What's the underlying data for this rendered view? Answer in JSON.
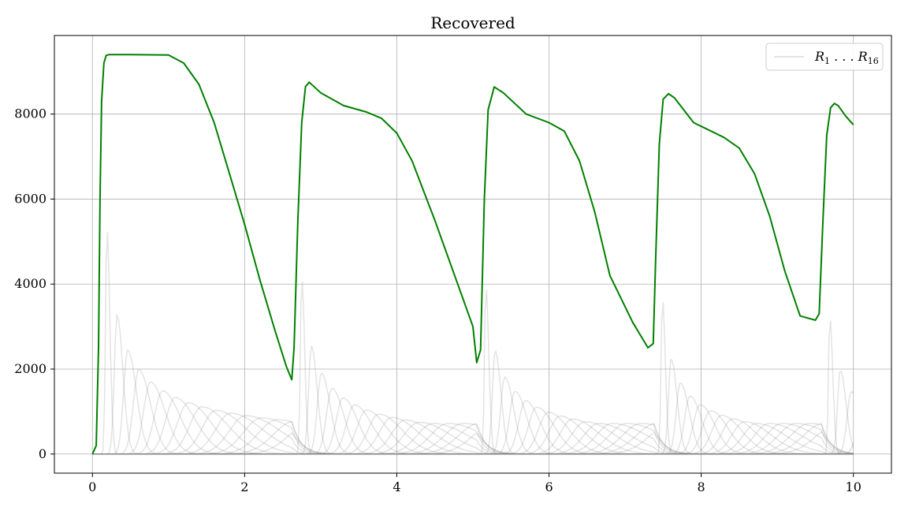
{
  "chart_data": {
    "type": "line",
    "title": "Recovered",
    "xlabel": "",
    "ylabel": "",
    "xlim": [
      -0.5,
      10.5
    ],
    "ylim": [
      -450,
      9850
    ],
    "x_ticks": [
      0,
      2,
      4,
      6,
      8,
      10
    ],
    "x_tick_labels": [
      "0",
      "2",
      "4",
      "6",
      "8",
      "10"
    ],
    "y_ticks": [
      0,
      2000,
      4000,
      6000,
      8000
    ],
    "y_tick_labels": [
      "0",
      "2000",
      "4000",
      "6000",
      "8000"
    ],
    "grid": true,
    "legend": {
      "placement": "top-right",
      "entries": [
        "R1 ... R16"
      ],
      "label_main": "R",
      "sub_first": "1",
      "ellipsis": " . . . ",
      "sub_last": "16"
    },
    "colors": {
      "total": "#008000",
      "components": "#808080",
      "grid": "#b0b0b0",
      "axes": "#000000"
    },
    "series": [
      {
        "role": "total",
        "x": [
          0,
          0.05,
          0.08,
          0.1,
          0.12,
          0.15,
          0.18,
          0.22,
          0.3,
          0.5,
          1.0,
          1.2,
          1.4,
          1.6,
          1.8,
          2.0,
          2.2,
          2.4,
          2.55,
          2.62,
          2.65,
          2.7,
          2.75,
          2.8,
          2.85,
          3.0,
          3.3,
          3.6,
          3.8,
          4.0,
          4.2,
          4.5,
          4.8,
          5.0,
          5.05,
          5.1,
          5.15,
          5.2,
          5.28,
          5.4,
          5.7,
          6.0,
          6.2,
          6.4,
          6.6,
          6.8,
          7.1,
          7.3,
          7.37,
          7.4,
          7.45,
          7.5,
          7.57,
          7.65,
          7.9,
          8.3,
          8.5,
          8.7,
          8.9,
          9.1,
          9.3,
          9.5,
          9.55,
          9.6,
          9.65,
          9.7,
          9.75,
          9.8,
          9.9,
          10.0
        ],
        "values": [
          0,
          200,
          2500,
          6000,
          8300,
          9200,
          9380,
          9400,
          9400,
          9400,
          9390,
          9200,
          8700,
          7800,
          6600,
          5400,
          4100,
          2900,
          2050,
          1750,
          2500,
          5500,
          7800,
          8650,
          8750,
          8500,
          8200,
          8050,
          7900,
          7550,
          6900,
          5500,
          4000,
          3000,
          2150,
          2450,
          6000,
          8100,
          8640,
          8500,
          8000,
          7800,
          7600,
          6900,
          5700,
          4200,
          3100,
          2500,
          2600,
          4500,
          7300,
          8350,
          8480,
          8380,
          7800,
          7450,
          7200,
          6600,
          5600,
          4300,
          3250,
          3150,
          3300,
          5500,
          7500,
          8150,
          8250,
          8200,
          7950,
          7750
        ]
      }
    ]
  }
}
